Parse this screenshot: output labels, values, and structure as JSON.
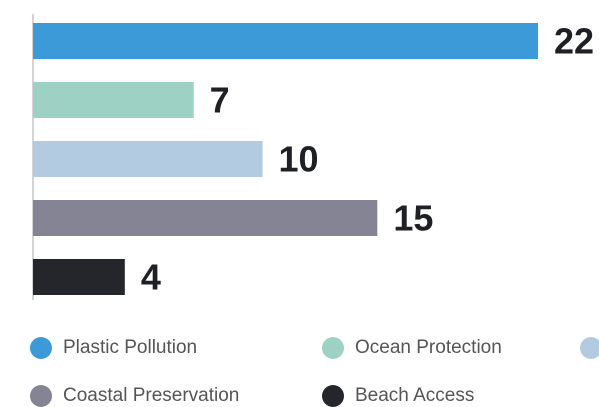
{
  "chart_data": {
    "type": "bar",
    "orientation": "horizontal",
    "categories": [
      "Plastic Pollution",
      "Ocean Protection",
      "",
      "Coastal Preservation",
      "Beach Access"
    ],
    "values": [
      22,
      7,
      10,
      15,
      4
    ],
    "colors": [
      "#3d9ad8",
      "#9dd1c3",
      "#b2cbe0",
      "#848494",
      "#24262c"
    ],
    "title": "",
    "xlabel": "",
    "ylabel": "",
    "xlim": [
      0,
      22
    ],
    "grid": false,
    "data_labels": true,
    "legend_position": "bottom",
    "legend": [
      {
        "label": "Plastic Pollution",
        "color": "#3d9ad8"
      },
      {
        "label": "Ocean Protection",
        "color": "#9dd1c3"
      },
      {
        "label": "",
        "color": "#b2cbe0"
      },
      {
        "label": "Coastal Preservation",
        "color": "#848494"
      },
      {
        "label": "Beach Access",
        "color": "#24262c"
      }
    ]
  }
}
